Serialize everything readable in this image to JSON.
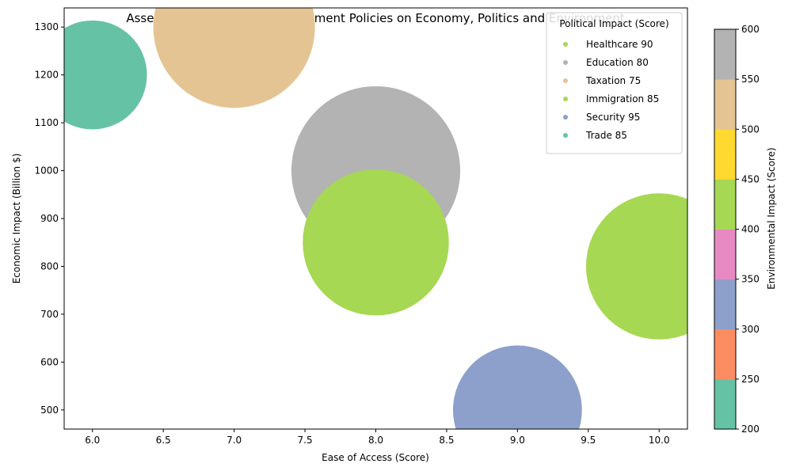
{
  "chart_data": {
    "type": "scatter",
    "title": "Assessing the Effects of Government Policies on Economy, Politics and Environment",
    "xlabel": "Ease of Access (Score)",
    "ylabel": "Economic Impact (Billion $)",
    "xlim": [
      5.8,
      10.2
    ],
    "ylim": [
      460,
      1340
    ],
    "xticks": [
      "6.0",
      "6.5",
      "7.0",
      "7.5",
      "8.0",
      "8.5",
      "9.0",
      "9.5",
      "10.0"
    ],
    "yticks": [
      "500",
      "600",
      "700",
      "800",
      "900",
      "1000",
      "1100",
      "1200",
      "1300"
    ],
    "grid": false,
    "legend_placement": "top-right",
    "legend_title": "Political Impact (Score)",
    "points": [
      {
        "label": "Healthcare 90",
        "policy": "Healthcare",
        "political": 90,
        "x": 10,
        "y": 800,
        "environmental": 450,
        "color": "#a6d854"
      },
      {
        "label": "Education 80",
        "policy": "Education",
        "political": 80,
        "x": 8,
        "y": 1000,
        "environmental": 600,
        "color": "#b3b3b3"
      },
      {
        "label": "Taxation 75",
        "policy": "Taxation",
        "political": 75,
        "x": 7,
        "y": 1300,
        "environmental": 550,
        "color": "#e5c494"
      },
      {
        "label": "Immigration 85",
        "policy": "Immigration",
        "political": 85,
        "x": 8,
        "y": 850,
        "environmental": 450,
        "color": "#a6d854"
      },
      {
        "label": "Security 95",
        "policy": "Security",
        "political": 95,
        "x": 9,
        "y": 500,
        "environmental": 350,
        "color": "#8da0cb"
      },
      {
        "label": "Trade 85",
        "policy": "Trade",
        "political": 85,
        "x": 6,
        "y": 1200,
        "environmental": 250,
        "color": "#66c2a5"
      }
    ],
    "colorbar": {
      "label": "Environmental Impact (Score)",
      "range": [
        200,
        600
      ],
      "ticks": [
        "200",
        "250",
        "300",
        "350",
        "400",
        "450",
        "500",
        "550",
        "600"
      ],
      "colors": [
        "#66c2a5",
        "#fc8d62",
        "#8da0cb",
        "#e78ac3",
        "#a6d854",
        "#ffd92f",
        "#e5c494",
        "#b3b3b3"
      ]
    }
  }
}
